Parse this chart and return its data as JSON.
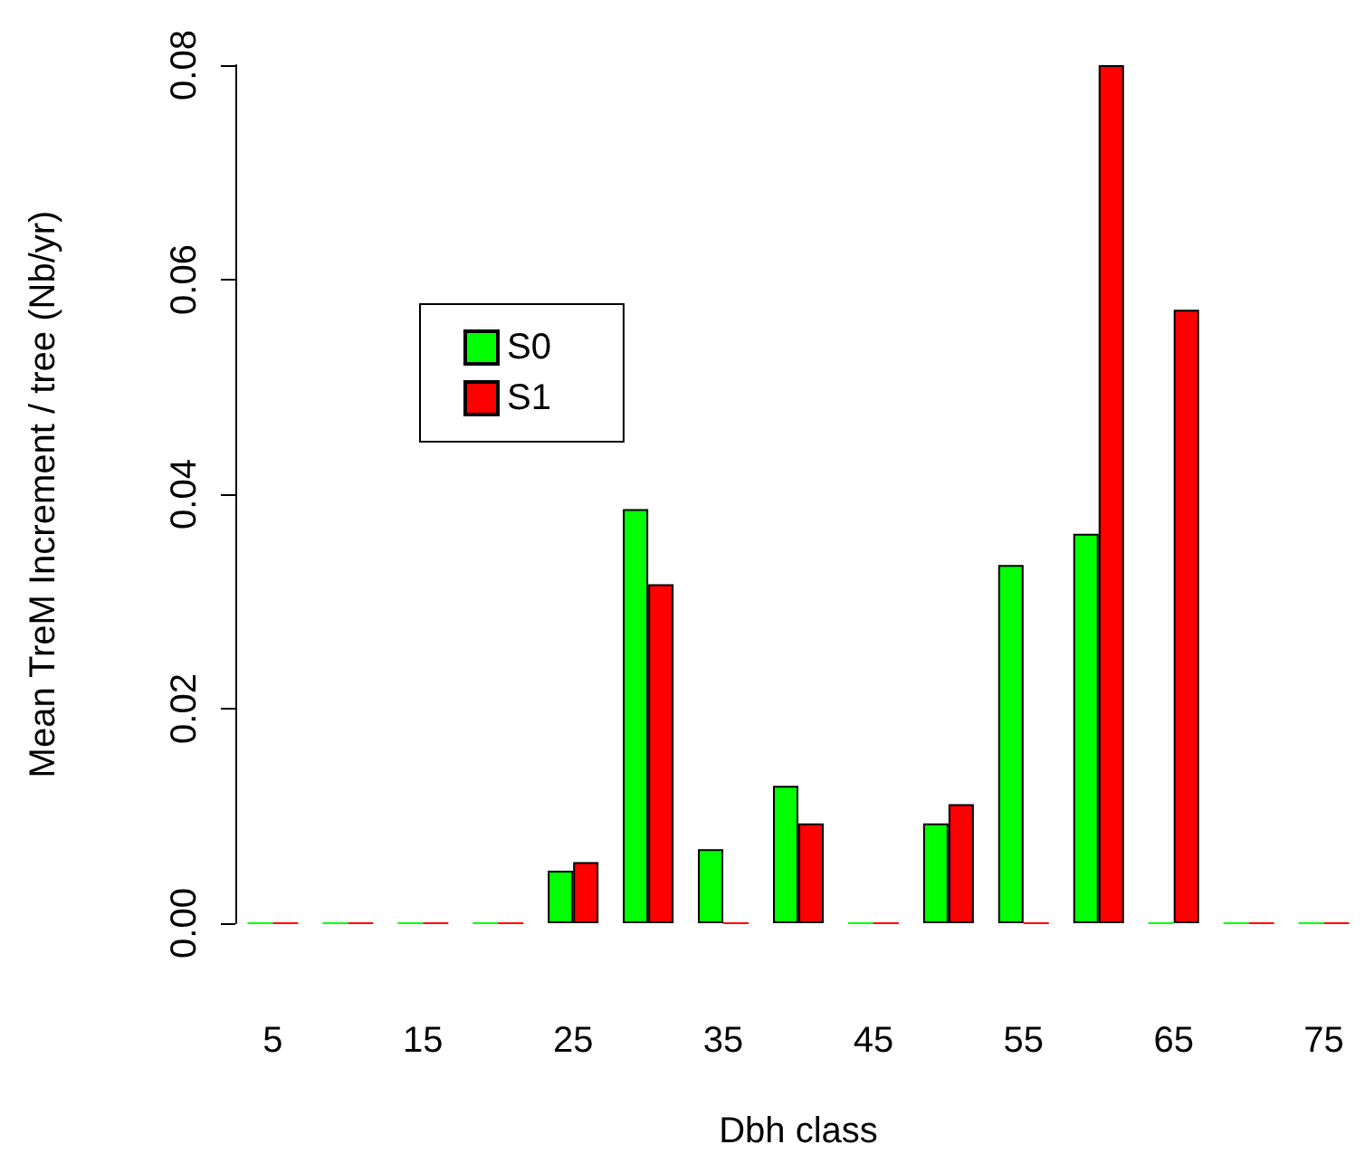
{
  "chart_data": {
    "type": "bar",
    "xlabel": "Dbh class",
    "ylabel": "Mean TreM Increment / tree (Nb/yr)",
    "categories": [
      "5",
      null,
      "15",
      null,
      "25",
      null,
      "35",
      null,
      "45",
      null,
      "55",
      null,
      "65",
      null,
      "75"
    ],
    "series": [
      {
        "name": "S0",
        "color": "#00ff00",
        "values": [
          0,
          0,
          0,
          0,
          0.0049,
          0.0386,
          0.0069,
          0.0128,
          0,
          0.0093,
          0.0334,
          0.0363,
          0,
          0,
          0
        ]
      },
      {
        "name": "S1",
        "color": "#ff0000",
        "values": [
          0,
          0,
          0,
          0,
          0.0057,
          0.0316,
          0,
          0.0093,
          0,
          0.0111,
          0,
          0.08,
          0.0572,
          0,
          0
        ]
      }
    ],
    "ylim": [
      0,
      0.08
    ],
    "yticks": [
      {
        "value": 0,
        "label": "0.00"
      },
      {
        "value": 0.02,
        "label": "0.02"
      },
      {
        "value": 0.04,
        "label": "0.04"
      },
      {
        "value": 0.06,
        "label": "0.06"
      },
      {
        "value": 0.08,
        "label": "0.08"
      }
    ],
    "grid": false,
    "legend": "top left"
  }
}
